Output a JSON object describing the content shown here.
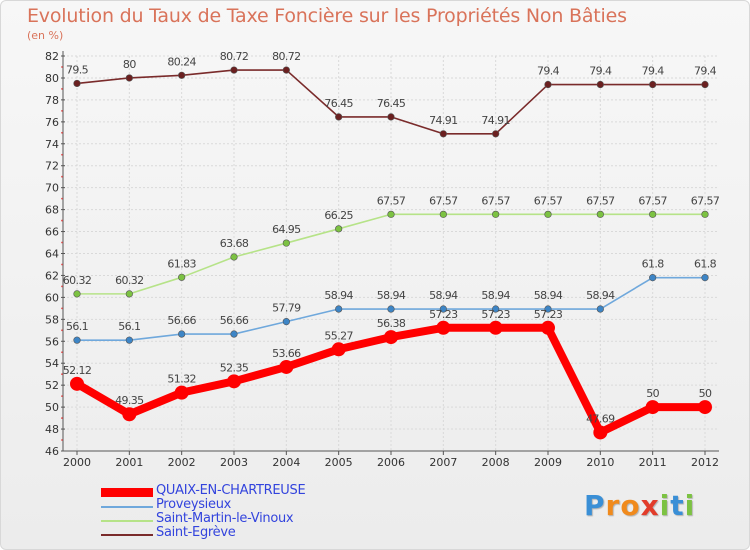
{
  "title": "Evolution du Taux de Taxe Foncière sur les Propriétés Non Bâties",
  "unit": "(en %)",
  "logo": {
    "text": "Proxiti",
    "letters": [
      "P",
      "r",
      "o",
      "x",
      "i",
      "t",
      "i"
    ],
    "colors": [
      "#3a8fd6",
      "#f08a1c",
      "#f08a1c",
      "#e23c2a",
      "#7cc242",
      "#3a8fd6",
      "#7cc242"
    ]
  },
  "chart_data": {
    "type": "line",
    "title": "Evolution du Taux de Taxe Foncière sur les Propriétés Non Bâties",
    "ylabel": "(en %)",
    "xlabel": "",
    "ylim": [
      46,
      82
    ],
    "yticks": [
      46,
      48,
      50,
      52,
      54,
      56,
      58,
      60,
      62,
      64,
      66,
      68,
      70,
      72,
      74,
      76,
      78,
      80,
      82
    ],
    "categories": [
      "2000",
      "2001",
      "2002",
      "2003",
      "2004",
      "2005",
      "2006",
      "2007",
      "2008",
      "2009",
      "2010",
      "2011",
      "2012"
    ],
    "legend_position": "bottom-left",
    "series": [
      {
        "name": "QUAIX-EN-CHARTREUSE",
        "color": "#ff0000",
        "marker_color": "#ff0000",
        "values": [
          52.12,
          49.35,
          51.32,
          52.35,
          53.66,
          55.27,
          56.38,
          57.23,
          57.23,
          57.23,
          47.69,
          50,
          50
        ],
        "labels": [
          "52.12",
          "49.35",
          "51.32",
          "52.35",
          "53.66",
          "55.27",
          "56.38",
          "57.23",
          "57.23",
          "57.23",
          "47.69",
          "50",
          "50"
        ]
      },
      {
        "name": "Proveysieux",
        "color": "#6fa8dc",
        "marker_color": "#3d85c6",
        "values": [
          56.1,
          56.1,
          56.66,
          56.66,
          57.79,
          58.94,
          58.94,
          58.94,
          58.94,
          58.94,
          58.94,
          61.8,
          61.8
        ],
        "labels": [
          "56.1",
          "56.1",
          "56.66",
          "56.66",
          "57.79",
          "58.94",
          "58.94",
          "58.94",
          "58.94",
          "58.94",
          "58.94",
          "61.8",
          "61.8"
        ]
      },
      {
        "name": "Saint-Martin-le-Vinoux",
        "color": "#b6e388",
        "marker_color": "#7cc242",
        "values": [
          60.32,
          60.32,
          61.83,
          63.68,
          64.95,
          66.25,
          67.57,
          67.57,
          67.57,
          67.57,
          67.57,
          67.57,
          67.57
        ],
        "labels": [
          "60.32",
          "60.32",
          "61.83",
          "63.68",
          "64.95",
          "66.25",
          "67.57",
          "67.57",
          "67.57",
          "67.57",
          "67.57",
          "67.57",
          "67.57"
        ]
      },
      {
        "name": "Saint-Egrève",
        "color": "#7a2b2b",
        "marker_color": "#6b2020",
        "values": [
          79.5,
          80,
          80.24,
          80.72,
          80.72,
          76.45,
          76.45,
          74.91,
          74.91,
          79.4,
          79.4,
          79.4,
          79.4
        ],
        "labels": [
          "79.5",
          "80",
          "80.24",
          "80.72",
          "80.72",
          "76.45",
          "76.45",
          "74.91",
          "74.91",
          "79.4",
          "79.4",
          "79.4",
          "79.4"
        ]
      }
    ]
  }
}
